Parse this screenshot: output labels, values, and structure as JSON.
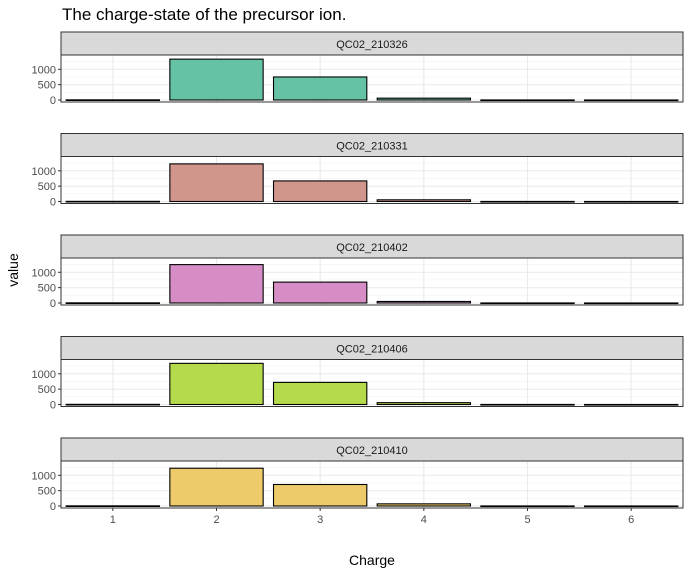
{
  "chart_data": {
    "type": "bar",
    "title": "The charge-state of the precursor ion.",
    "xlabel": "Charge",
    "ylabel": "value",
    "categories": [
      "1",
      "2",
      "3",
      "4",
      "5",
      "6"
    ],
    "ylim": [
      0,
      1400
    ],
    "yticks": [
      0,
      500,
      1000
    ],
    "grid": true,
    "facets": [
      {
        "name": "QC02_210326",
        "color": "#66c2a5",
        "values": [
          5,
          1330,
          750,
          60,
          2,
          1
        ]
      },
      {
        "name": "QC02_210331",
        "color": "#d1968b",
        "values": [
          5,
          1225,
          670,
          55,
          2,
          1
        ]
      },
      {
        "name": "QC02_210402",
        "color": "#d68cc4",
        "values": [
          5,
          1250,
          680,
          50,
          2,
          1
        ]
      },
      {
        "name": "QC02_210406",
        "color": "#b5db4d",
        "values": [
          5,
          1340,
          720,
          60,
          2,
          1
        ]
      },
      {
        "name": "QC02_210410",
        "color": "#eecb6a",
        "values": [
          5,
          1230,
          700,
          70,
          2,
          1
        ]
      }
    ]
  }
}
